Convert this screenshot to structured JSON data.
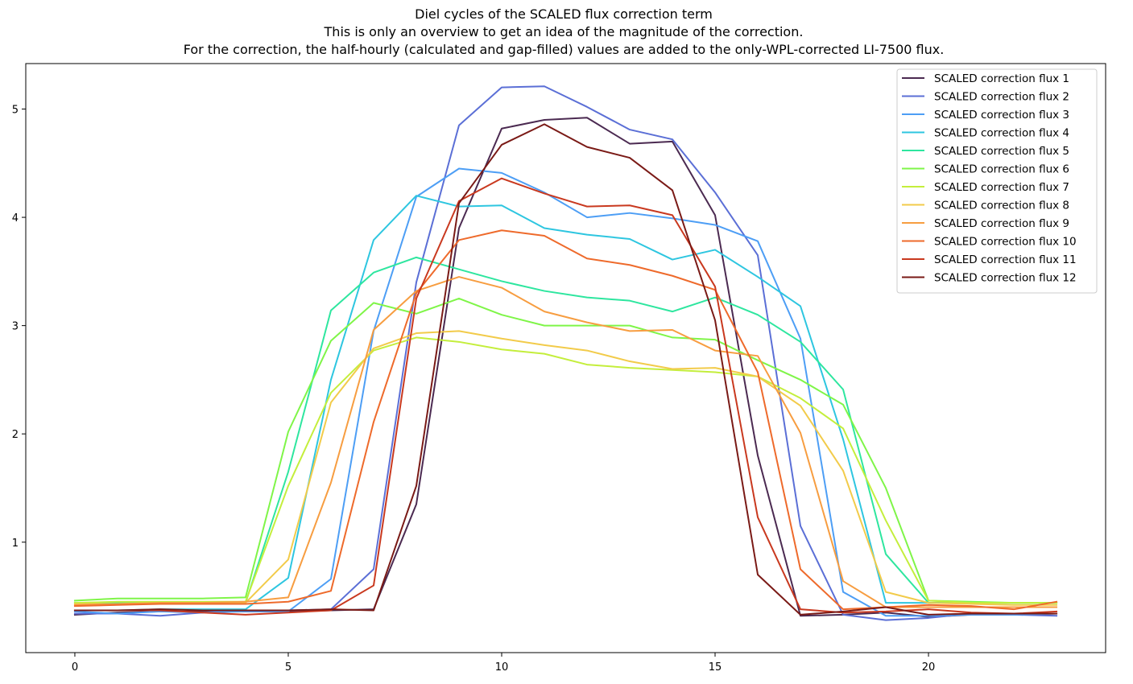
{
  "chart_data": {
    "type": "line",
    "title_lines": [
      "Diel cycles of the SCALED flux correction term",
      "This is only an overview to get an idea of the magnitude of the correction.",
      "For the correction, the half-hourly (calculated and gap-filled) values are added to the only-WPL-corrected LI-7500 flux."
    ],
    "xlabel": "",
    "ylabel": "",
    "xlim": [
      -1.15,
      24.15
    ],
    "ylim": [
      -0.02,
      5.42
    ],
    "x_ticks": [
      0,
      5,
      10,
      15,
      20
    ],
    "y_ticks": [
      1,
      2,
      3,
      4,
      5
    ],
    "grid": false,
    "legend_position": "top-right",
    "x": [
      0,
      1,
      2,
      3,
      4,
      5,
      6,
      7,
      8,
      9,
      10,
      11,
      12,
      13,
      14,
      15,
      16,
      17,
      18,
      19,
      20,
      21,
      22,
      23
    ],
    "series": [
      {
        "name": "SCALED correction flux 1",
        "color": "#4b2a51",
        "values": [
          0.33,
          0.35,
          0.36,
          0.36,
          0.36,
          0.36,
          0.37,
          0.38,
          1.35,
          3.9,
          4.82,
          4.9,
          4.92,
          4.68,
          4.7,
          4.02,
          1.8,
          0.32,
          0.33,
          0.35,
          0.31,
          0.33,
          0.33,
          0.34
        ]
      },
      {
        "name": "SCALED correction flux 2",
        "color": "#5b6fd6",
        "values": [
          0.34,
          0.34,
          0.32,
          0.35,
          0.37,
          0.37,
          0.38,
          0.75,
          3.4,
          4.85,
          5.2,
          5.21,
          5.02,
          4.81,
          4.72,
          4.23,
          3.65,
          1.15,
          0.33,
          0.28,
          0.3,
          0.34,
          0.33,
          0.32
        ]
      },
      {
        "name": "SCALED correction flux 3",
        "color": "#4d9ef5",
        "values": [
          0.36,
          0.34,
          0.36,
          0.35,
          0.36,
          0.36,
          0.66,
          2.95,
          4.19,
          4.45,
          4.41,
          4.23,
          4.0,
          4.04,
          3.99,
          3.93,
          3.78,
          2.88,
          0.54,
          0.32,
          0.32,
          0.33,
          0.33,
          0.34
        ]
      },
      {
        "name": "SCALED correction flux 4",
        "color": "#2ec6e0",
        "values": [
          0.37,
          0.37,
          0.38,
          0.38,
          0.38,
          0.67,
          2.5,
          3.79,
          4.2,
          4.1,
          4.11,
          3.9,
          3.84,
          3.8,
          3.61,
          3.7,
          3.45,
          3.18,
          1.95,
          0.44,
          0.44,
          0.44,
          0.44,
          0.44
        ]
      },
      {
        "name": "SCALED correction flux 5",
        "color": "#2ee69f",
        "values": [
          0.44,
          0.44,
          0.44,
          0.44,
          0.44,
          1.65,
          3.14,
          3.49,
          3.63,
          3.52,
          3.41,
          3.32,
          3.26,
          3.23,
          3.13,
          3.26,
          3.1,
          2.85,
          2.41,
          0.89,
          0.44,
          0.44,
          0.44,
          0.44
        ]
      },
      {
        "name": "SCALED correction flux 6",
        "color": "#7ff548",
        "values": [
          0.46,
          0.48,
          0.48,
          0.48,
          0.49,
          2.02,
          2.86,
          3.21,
          3.11,
          3.25,
          3.1,
          3.0,
          3.0,
          3.0,
          2.89,
          2.87,
          2.68,
          2.5,
          2.27,
          1.5,
          0.46,
          0.45,
          0.44,
          0.44
        ]
      },
      {
        "name": "SCALED correction flux 7",
        "color": "#c4ee3c",
        "values": [
          0.44,
          0.45,
          0.45,
          0.45,
          0.45,
          1.52,
          2.38,
          2.77,
          2.89,
          2.85,
          2.78,
          2.74,
          2.64,
          2.61,
          2.59,
          2.57,
          2.53,
          2.33,
          2.05,
          1.2,
          0.46,
          0.44,
          0.44,
          0.44
        ]
      },
      {
        "name": "SCALED correction flux 8",
        "color": "#f2cb4a",
        "values": [
          0.43,
          0.43,
          0.44,
          0.44,
          0.44,
          0.84,
          2.29,
          2.79,
          2.93,
          2.95,
          2.88,
          2.82,
          2.77,
          2.67,
          2.6,
          2.61,
          2.53,
          2.26,
          1.66,
          0.54,
          0.44,
          0.43,
          0.42,
          0.42
        ]
      },
      {
        "name": "SCALED correction flux 9",
        "color": "#f79d40",
        "values": [
          0.42,
          0.43,
          0.44,
          0.44,
          0.45,
          0.49,
          1.55,
          2.96,
          3.32,
          3.45,
          3.35,
          3.13,
          3.03,
          2.95,
          2.96,
          2.77,
          2.72,
          2.01,
          0.64,
          0.4,
          0.4,
          0.4,
          0.4,
          0.4
        ]
      },
      {
        "name": "SCALED correction flux 10",
        "color": "#ee6a2b",
        "values": [
          0.41,
          0.42,
          0.43,
          0.43,
          0.43,
          0.45,
          0.55,
          2.11,
          3.3,
          3.79,
          3.88,
          3.83,
          3.62,
          3.56,
          3.46,
          3.33,
          2.57,
          0.75,
          0.38,
          0.4,
          0.42,
          0.41,
          0.38,
          0.45
        ]
      },
      {
        "name": "SCALED correction flux 11",
        "color": "#c9391f",
        "values": [
          0.37,
          0.37,
          0.37,
          0.35,
          0.33,
          0.35,
          0.37,
          0.6,
          3.25,
          4.15,
          4.36,
          4.22,
          4.1,
          4.11,
          4.02,
          3.36,
          1.23,
          0.38,
          0.35,
          0.36,
          0.38,
          0.35,
          0.34,
          0.36
        ]
      },
      {
        "name": "SCALED correction flux 12",
        "color": "#7a1a16",
        "values": [
          0.37,
          0.37,
          0.38,
          0.37,
          0.37,
          0.37,
          0.38,
          0.37,
          1.52,
          4.13,
          4.67,
          4.86,
          4.65,
          4.55,
          4.25,
          3.05,
          0.7,
          0.33,
          0.36,
          0.4,
          0.33,
          0.34,
          0.34,
          0.34
        ]
      }
    ]
  }
}
